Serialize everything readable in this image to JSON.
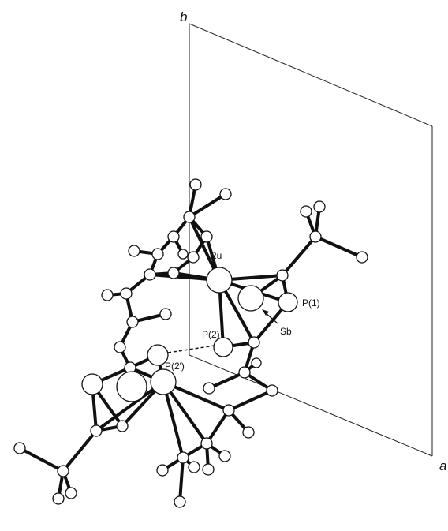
{
  "axes": {
    "b": "b",
    "a": "a"
  },
  "atoms": {
    "ru": "Ru",
    "p1": "P(1)",
    "p2": "P(2)",
    "sb": "Sb",
    "p2prime": "P(2′)"
  }
}
